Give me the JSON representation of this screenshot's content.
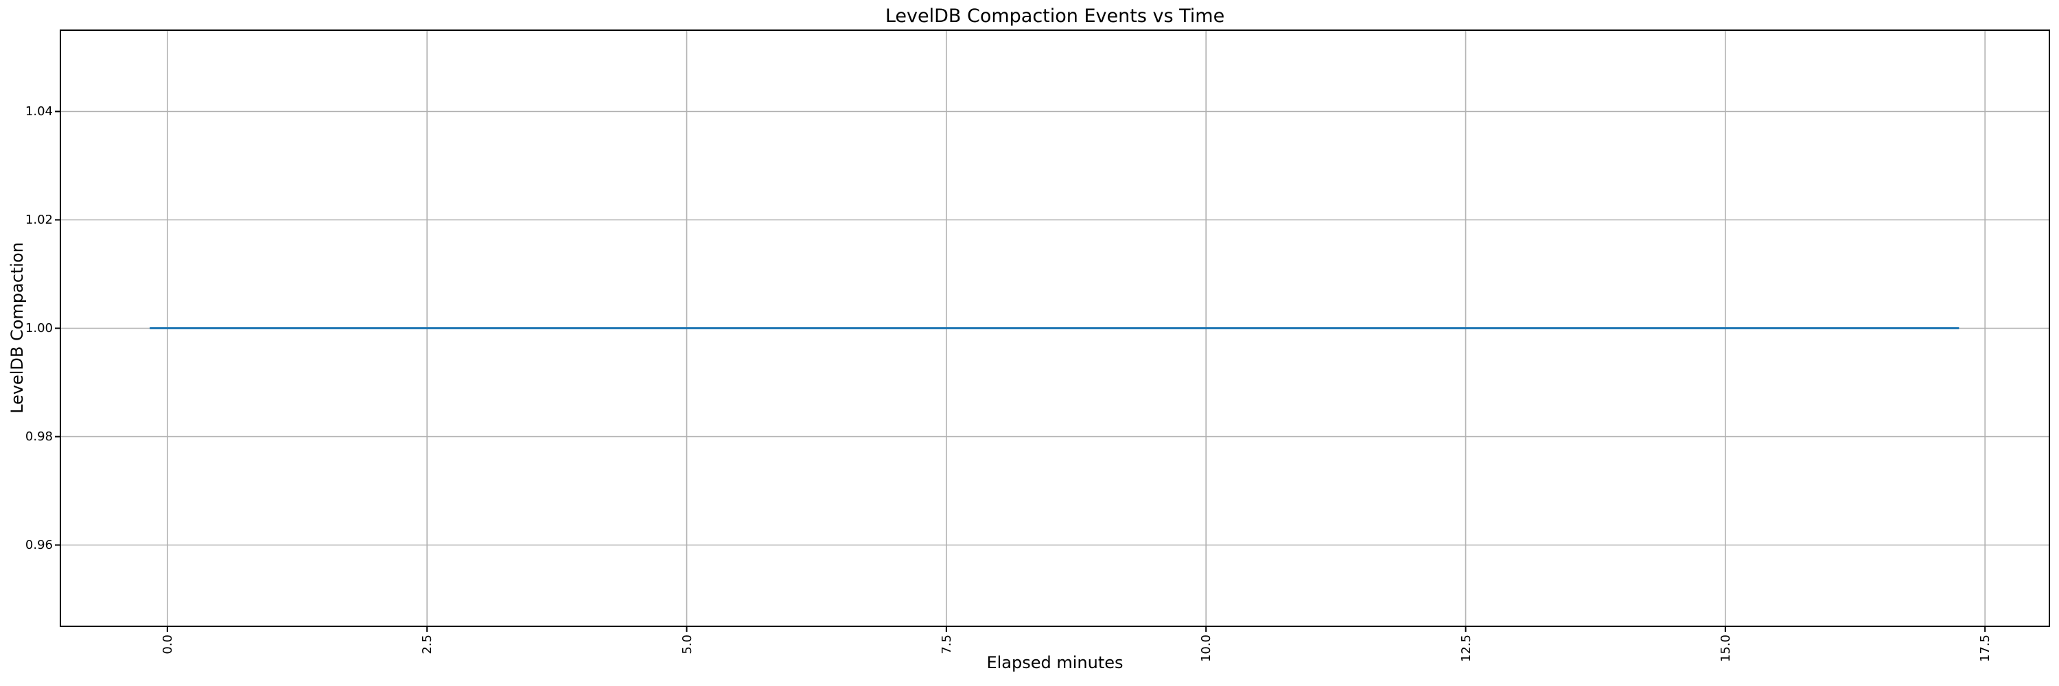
{
  "figure": {
    "background": "#ffffff"
  },
  "chart_data": {
    "type": "line",
    "title": "LevelDB Compaction Events vs Time",
    "xlabel": "Elapsed minutes",
    "ylabel": "LevelDB Compaction",
    "xlim": [
      -1.03,
      18.12
    ],
    "ylim": [
      0.945,
      1.055
    ],
    "x_ticks": [
      0.0,
      2.5,
      5.0,
      7.5,
      10.0,
      12.5,
      15.0,
      17.5
    ],
    "x_tick_labels": [
      "0.0",
      "2.5",
      "5.0",
      "7.5",
      "10.0",
      "12.5",
      "15.0",
      "17.5"
    ],
    "x_tick_rotation_deg": 90,
    "y_ticks": [
      0.96,
      0.98,
      1.0,
      1.02,
      1.04
    ],
    "y_tick_labels": [
      "0.96",
      "0.98",
      "1.00",
      "1.02",
      "1.04"
    ],
    "grid": true,
    "legend_position": "none",
    "series": [
      {
        "x": [
          -0.17,
          17.25
        ],
        "y": [
          1.0,
          1.0
        ],
        "color": "#1f77b4",
        "style": "solid",
        "markers": false
      }
    ]
  },
  "colors": {
    "line": "#1f77b4",
    "grid": "#b0b0b0",
    "spine": "#000000",
    "tick": "#000000",
    "text": "#000000",
    "background": "#ffffff"
  }
}
